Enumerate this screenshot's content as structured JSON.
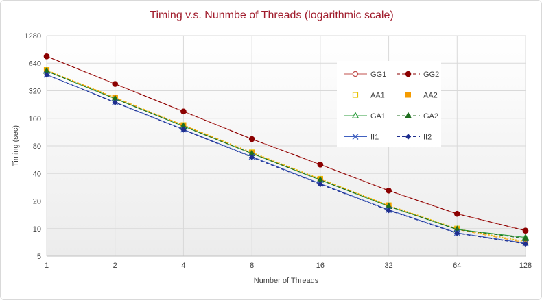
{
  "chart_data": {
    "type": "line",
    "title": "Timing v.s. Nunmbe of Threads (logarithmic scale)",
    "xlabel": "Number of Threads",
    "ylabel": "Timing (sec)",
    "x": [
      1,
      2,
      4,
      8,
      16,
      32,
      64,
      128
    ],
    "x_scale": "log2",
    "y_scale": "log2",
    "ylim": [
      5,
      1280
    ],
    "yticks": [
      5,
      10,
      20,
      40,
      80,
      160,
      320,
      640,
      1280
    ],
    "grid": true,
    "legend_position": "right",
    "series": [
      {
        "name": "GG1",
        "color": "#c0504d",
        "dash": "solid",
        "marker": "circle-open",
        "values": [
          760,
          380,
          190,
          95,
          50,
          26,
          14.5,
          9.5
        ]
      },
      {
        "name": "GG2",
        "color": "#8b0000",
        "dash": "dashed",
        "marker": "circle-filled",
        "values": [
          760,
          380,
          190,
          95,
          50,
          26,
          14.5,
          9.5
        ]
      },
      {
        "name": "AA1",
        "color": "#e6c000",
        "dash": "dotted",
        "marker": "square-open",
        "values": [
          540,
          270,
          135,
          68,
          35,
          18,
          10,
          7.2
        ]
      },
      {
        "name": "AA2",
        "color": "#f59b00",
        "dash": "dashed",
        "marker": "square-filled",
        "values": [
          535,
          268,
          134,
          67,
          34.5,
          17.8,
          9.8,
          7.0
        ]
      },
      {
        "name": "GA1",
        "color": "#2e9e3e",
        "dash": "solid",
        "marker": "triangle-open",
        "values": [
          525,
          262,
          131,
          66,
          34,
          17.5,
          9.8,
          8.0
        ]
      },
      {
        "name": "GA2",
        "color": "#1f6e1f",
        "dash": "dashed",
        "marker": "triangle-filled",
        "values": [
          525,
          262,
          131,
          66,
          34,
          17.5,
          9.8,
          7.8
        ]
      },
      {
        "name": "II1",
        "color": "#4060c0",
        "dash": "solid",
        "marker": "x",
        "values": [
          480,
          240,
          121,
          61,
          31,
          16,
          9.0,
          6.9
        ]
      },
      {
        "name": "II2",
        "color": "#1f2f8f",
        "dash": "dashed",
        "marker": "diamond-filled",
        "values": [
          478,
          238,
          120,
          60,
          30.5,
          15.8,
          8.9,
          6.8
        ]
      }
    ]
  }
}
